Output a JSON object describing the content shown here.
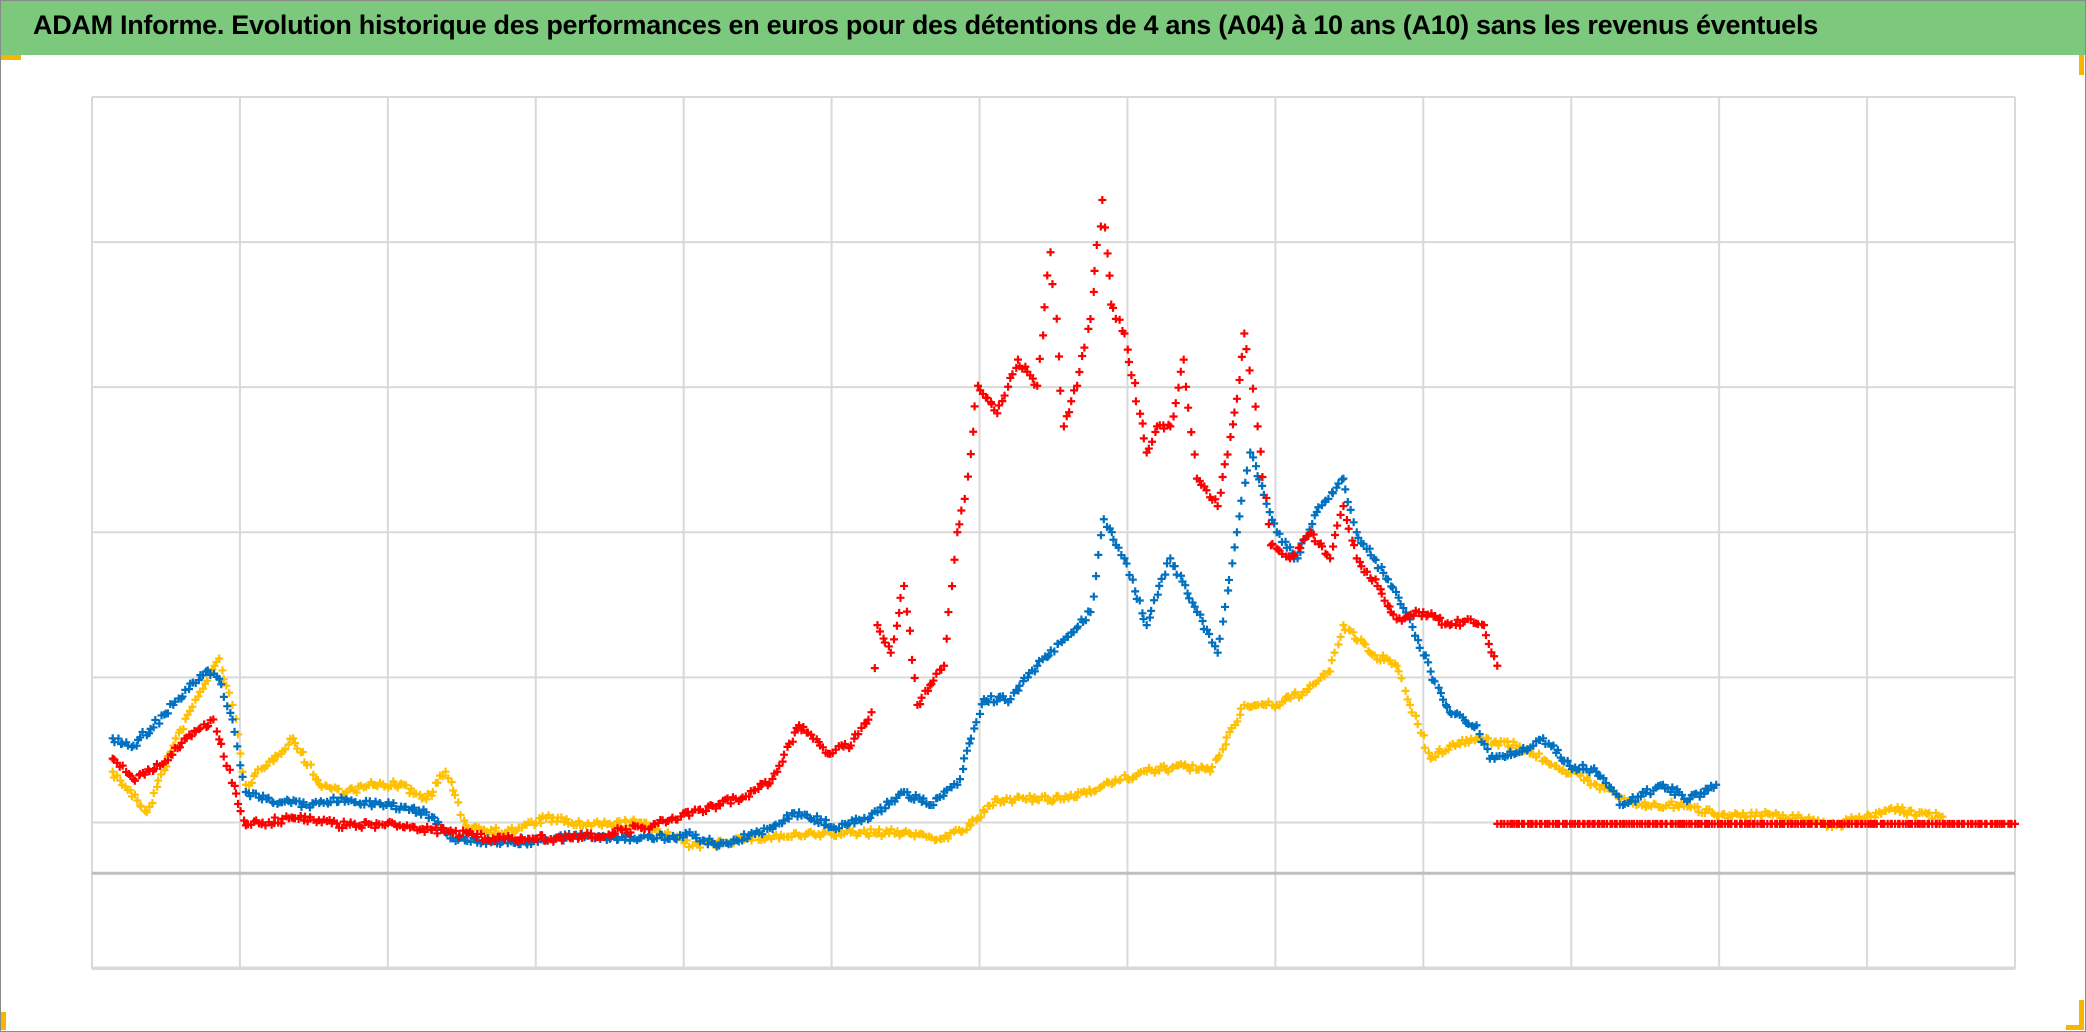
{
  "title": "ADAM Informe. Evolution historique des performances en euros pour des détentions de 4 ans (A04) à 10 ans (A10) sans les revenus éventuels",
  "chart_data": {
    "type": "scatter",
    "title": "ADAM Informe. Evolution historique des performances en euros pour des détentions de 4 ans (A04) à 10 ans (A10) sans les revenus éventuels",
    "xlabel": "",
    "ylabel": "",
    "xlim": [
      0,
      13
    ],
    "ylim": [
      -0.66,
      5.35
    ],
    "grid": true,
    "legend": "none",
    "marker": "plus",
    "series": [
      {
        "color": "#ffc000",
        "points": [
          [
            0.14,
            0.7
          ],
          [
            0.37,
            0.42
          ],
          [
            0.55,
            0.88
          ],
          [
            0.73,
            1.25
          ],
          [
            0.86,
            1.48
          ],
          [
            0.95,
            1.16
          ],
          [
            1.04,
            0.61
          ],
          [
            1.18,
            0.74
          ],
          [
            1.36,
            0.93
          ],
          [
            1.54,
            0.61
          ],
          [
            1.72,
            0.56
          ],
          [
            1.9,
            0.61
          ],
          [
            2.08,
            0.61
          ],
          [
            2.26,
            0.51
          ],
          [
            2.39,
            0.7
          ],
          [
            2.53,
            0.33
          ],
          [
            2.8,
            0.28
          ],
          [
            3.07,
            0.38
          ],
          [
            3.34,
            0.33
          ],
          [
            3.7,
            0.35
          ],
          [
            4.06,
            0.19
          ],
          [
            4.42,
            0.24
          ],
          [
            4.78,
            0.26
          ],
          [
            5.13,
            0.28
          ],
          [
            5.49,
            0.28
          ],
          [
            5.76,
            0.24
          ],
          [
            5.94,
            0.33
          ],
          [
            6.12,
            0.51
          ],
          [
            6.39,
            0.51
          ],
          [
            6.57,
            0.51
          ],
          [
            6.84,
            0.61
          ],
          [
            7.13,
            0.7
          ],
          [
            7.38,
            0.74
          ],
          [
            7.56,
            0.7
          ],
          [
            7.79,
            1.16
          ],
          [
            8.01,
            1.16
          ],
          [
            8.19,
            1.25
          ],
          [
            8.37,
            1.39
          ],
          [
            8.46,
            1.71
          ],
          [
            8.64,
            1.52
          ],
          [
            8.82,
            1.43
          ],
          [
            8.91,
            1.16
          ],
          [
            9.05,
            0.79
          ],
          [
            9.18,
            0.88
          ],
          [
            9.36,
            0.93
          ],
          [
            9.63,
            0.88
          ],
          [
            9.9,
            0.74
          ],
          [
            10.17,
            0.61
          ],
          [
            10.44,
            0.47
          ],
          [
            10.71,
            0.47
          ],
          [
            11.07,
            0.4
          ],
          [
            11.43,
            0.4
          ],
          [
            11.79,
            0.33
          ],
          [
            12.15,
            0.44
          ],
          [
            12.51,
            0.39
          ]
        ]
      },
      {
        "color": "#0070c0",
        "points": [
          [
            0.14,
            0.93
          ],
          [
            0.28,
            0.88
          ],
          [
            0.55,
            1.16
          ],
          [
            0.77,
            1.39
          ],
          [
            0.86,
            1.34
          ],
          [
            0.95,
            1.06
          ],
          [
            1.04,
            0.56
          ],
          [
            1.18,
            0.51
          ],
          [
            1.45,
            0.47
          ],
          [
            1.72,
            0.51
          ],
          [
            1.99,
            0.47
          ],
          [
            2.26,
            0.42
          ],
          [
            2.44,
            0.24
          ],
          [
            2.71,
            0.22
          ],
          [
            2.98,
            0.22
          ],
          [
            3.34,
            0.26
          ],
          [
            3.7,
            0.24
          ],
          [
            4.06,
            0.26
          ],
          [
            4.24,
            0.19
          ],
          [
            4.51,
            0.28
          ],
          [
            4.78,
            0.42
          ],
          [
            5.05,
            0.31
          ],
          [
            5.31,
            0.42
          ],
          [
            5.49,
            0.56
          ],
          [
            5.67,
            0.47
          ],
          [
            5.85,
            0.61
          ],
          [
            6.03,
            1.2
          ],
          [
            6.21,
            1.2
          ],
          [
            6.39,
            1.43
          ],
          [
            6.57,
            1.61
          ],
          [
            6.75,
            1.8
          ],
          [
            6.84,
            2.44
          ],
          [
            6.98,
            2.17
          ],
          [
            7.13,
            1.71
          ],
          [
            7.29,
            2.17
          ],
          [
            7.47,
            1.8
          ],
          [
            7.61,
            1.52
          ],
          [
            7.74,
            2.35
          ],
          [
            7.83,
            2.9
          ],
          [
            8.01,
            2.35
          ],
          [
            8.15,
            2.17
          ],
          [
            8.28,
            2.49
          ],
          [
            8.46,
            2.72
          ],
          [
            8.55,
            2.35
          ],
          [
            8.73,
            2.07
          ],
          [
            8.91,
            1.75
          ],
          [
            9.05,
            1.39
          ],
          [
            9.18,
            1.11
          ],
          [
            9.36,
            1.02
          ],
          [
            9.45,
            0.79
          ],
          [
            9.63,
            0.83
          ],
          [
            9.81,
            0.93
          ],
          [
            9.99,
            0.74
          ],
          [
            10.17,
            0.7
          ],
          [
            10.35,
            0.47
          ],
          [
            10.62,
            0.61
          ],
          [
            10.8,
            0.51
          ],
          [
            10.98,
            0.61
          ]
        ]
      },
      {
        "color": "#ff0000",
        "points": [
          [
            0.14,
            0.79
          ],
          [
            0.28,
            0.65
          ],
          [
            0.46,
            0.74
          ],
          [
            0.64,
            0.93
          ],
          [
            0.82,
            1.06
          ],
          [
            0.91,
            0.74
          ],
          [
            1.04,
            0.33
          ],
          [
            1.36,
            0.38
          ],
          [
            1.72,
            0.33
          ],
          [
            2.08,
            0.33
          ],
          [
            2.44,
            0.28
          ],
          [
            2.71,
            0.24
          ],
          [
            2.98,
            0.24
          ],
          [
            3.25,
            0.24
          ],
          [
            3.52,
            0.28
          ],
          [
            3.88,
            0.35
          ],
          [
            4.06,
            0.42
          ],
          [
            4.42,
            0.53
          ],
          [
            4.6,
            0.65
          ],
          [
            4.78,
            1.02
          ],
          [
            4.96,
            0.83
          ],
          [
            5.13,
            0.88
          ],
          [
            5.27,
            1.11
          ],
          [
            5.31,
            1.71
          ],
          [
            5.4,
            1.52
          ],
          [
            5.49,
            1.98
          ],
          [
            5.58,
            1.16
          ],
          [
            5.76,
            1.43
          ],
          [
            5.85,
            2.35
          ],
          [
            5.9,
            2.58
          ],
          [
            5.99,
            3.36
          ],
          [
            6.12,
            3.17
          ],
          [
            6.26,
            3.54
          ],
          [
            6.39,
            3.36
          ],
          [
            6.48,
            4.28
          ],
          [
            6.57,
            3.08
          ],
          [
            6.66,
            3.36
          ],
          [
            6.75,
            3.82
          ],
          [
            6.83,
            4.64
          ],
          [
            6.89,
            3.92
          ],
          [
            6.98,
            3.72
          ],
          [
            7.13,
            2.9
          ],
          [
            7.2,
            3.08
          ],
          [
            7.29,
            3.08
          ],
          [
            7.38,
            3.54
          ],
          [
            7.47,
            2.72
          ],
          [
            7.61,
            2.53
          ],
          [
            7.74,
            3.27
          ],
          [
            7.79,
            3.72
          ],
          [
            7.88,
            3.08
          ],
          [
            7.97,
            2.26
          ],
          [
            8.1,
            2.17
          ],
          [
            8.24,
            2.35
          ],
          [
            8.37,
            2.17
          ],
          [
            8.46,
            2.53
          ],
          [
            8.55,
            2.17
          ],
          [
            8.69,
            1.98
          ],
          [
            8.82,
            1.75
          ],
          [
            9.0,
            1.8
          ],
          [
            9.18,
            1.71
          ],
          [
            9.32,
            1.75
          ],
          [
            9.41,
            1.71
          ],
          [
            9.5,
            1.43
          ]
        ]
      },
      {
        "color": "#ff0000",
        "points": [
          [
            9.5,
            0.34
          ],
          [
            13.0,
            0.34
          ]
        ]
      }
    ]
  }
}
